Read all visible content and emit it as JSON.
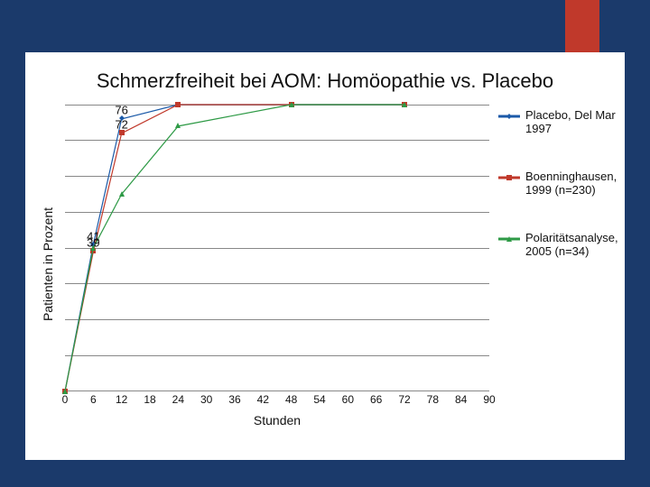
{
  "slide": {
    "bg_color": "#1b3a6b",
    "accent_color": "#c0392b",
    "panel_color": "#ffffff"
  },
  "chart": {
    "type": "line",
    "title": "Schmerzfreiheit bei AOM: Homöopathie vs. Placebo",
    "xlabel": "Stunden",
    "ylabel": "Patienten in Prozent",
    "xlim": [
      0,
      90
    ],
    "ylim": [
      0,
      80
    ],
    "xticks": [
      0,
      6,
      12,
      18,
      24,
      30,
      36,
      42,
      48,
      54,
      60,
      66,
      72,
      78,
      84,
      90
    ],
    "y_gridlines": [
      0,
      10,
      20,
      30,
      40,
      50,
      60,
      70,
      80
    ],
    "grid_color": "#888888",
    "background_color": "#ffffff",
    "axis_fontsize": 12,
    "label_fontsize": 14,
    "title_fontsize": 22,
    "line_width": 3,
    "marker_size": 6,
    "series": [
      {
        "id": "placebo",
        "label": "Placebo, Del Mar 1997",
        "color": "#1b5aa8",
        "marker": "diamond",
        "x": [
          0,
          6,
          12,
          24,
          48,
          72
        ],
        "y": [
          0,
          41,
          76,
          80,
          80,
          80
        ]
      },
      {
        "id": "boenninghausen",
        "label": "Boenninghausen, 1999 (n=230)",
        "color": "#c0392b",
        "marker": "square",
        "x": [
          0,
          6,
          12,
          24,
          48,
          72
        ],
        "y": [
          0,
          39,
          72,
          80,
          80,
          80
        ]
      },
      {
        "id": "polaritaet",
        "label": "Polaritätsanalyse, 2005 (n=34)",
        "color": "#2e9a46",
        "marker": "triangle",
        "x": [
          0,
          6,
          12,
          24,
          48,
          72
        ],
        "y": [
          0,
          40,
          55,
          74,
          80,
          80
        ]
      }
    ],
    "point_labels": [
      {
        "series": "placebo",
        "index": 1,
        "text": "41"
      },
      {
        "series": "placebo",
        "index": 2,
        "text": "76"
      },
      {
        "series": "boenninghausen",
        "index": 1,
        "text": "39"
      },
      {
        "series": "boenninghausen",
        "index": 2,
        "text": "72"
      }
    ]
  }
}
